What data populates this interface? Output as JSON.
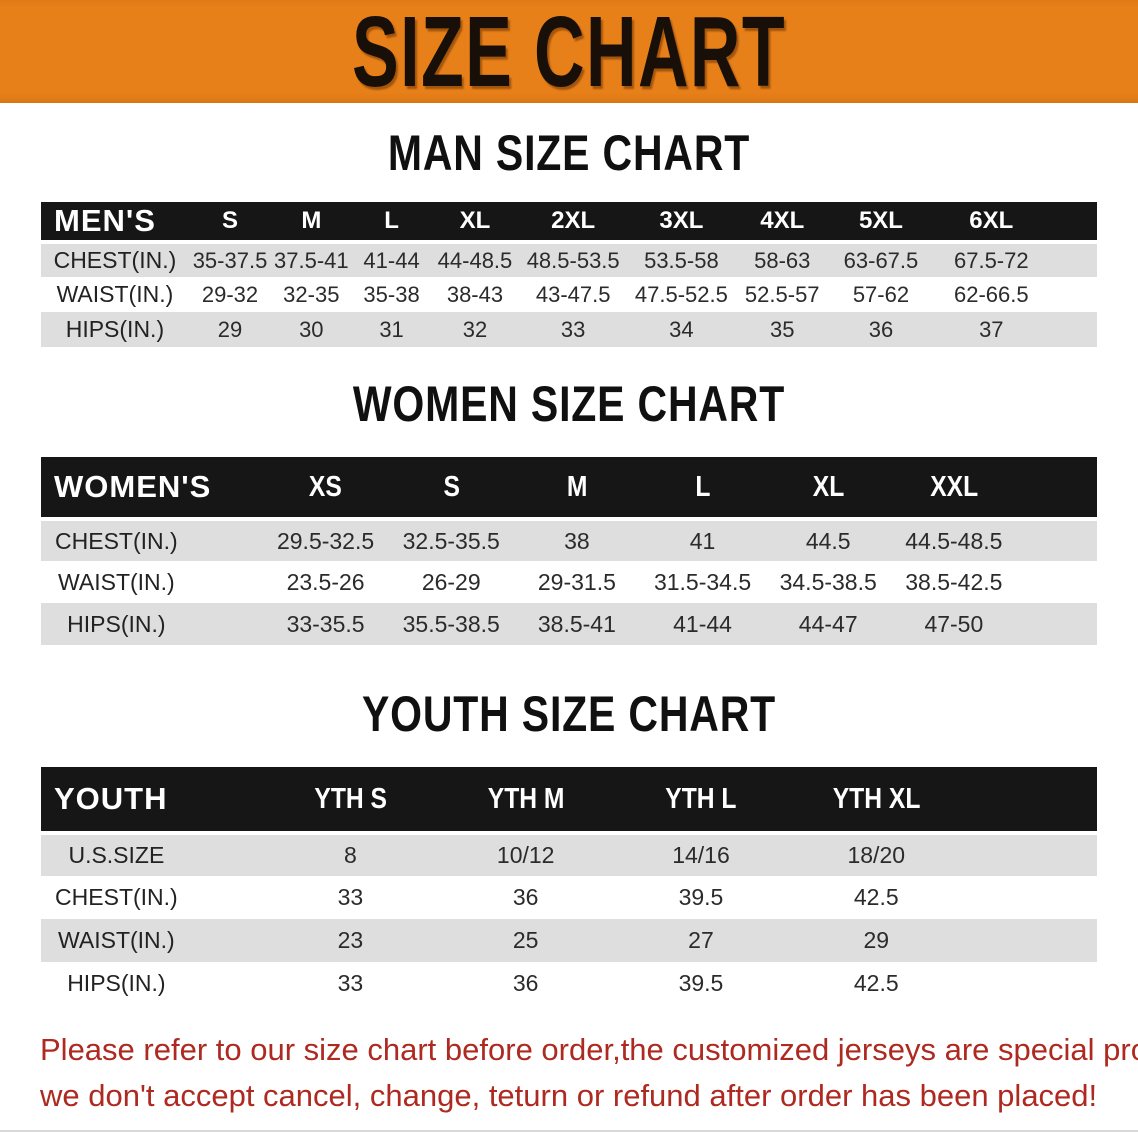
{
  "banner": {
    "title": "SIZE CHART",
    "bg_color": "#E8801A",
    "text_color": "#181008"
  },
  "sections": [
    {
      "id": "men",
      "heading": "MAN SIZE CHART",
      "table": {
        "corner_label": "MEN'S",
        "columns": [
          "S",
          "M",
          "L",
          "XL",
          "2XL",
          "3XL",
          "4XL",
          "5XL",
          "6XL"
        ],
        "rows": [
          {
            "label": "CHEST(IN.)",
            "values": [
              "35-37.5",
              "37.5-41",
              "41-44",
              "44-48.5",
              "48.5-53.5",
              "53.5-58",
              "58-63",
              "63-67.5",
              "67.5-72"
            ]
          },
          {
            "label": "WAIST(IN.)",
            "values": [
              "29-32",
              "32-35",
              "35-38",
              "38-43",
              "43-47.5",
              "47.5-52.5",
              "52.5-57",
              "57-62",
              "62-66.5"
            ]
          },
          {
            "label": "HIPS(IN.)",
            "values": [
              "29",
              "30",
              "31",
              "32",
              "33",
              "34",
              "35",
              "36",
              "37"
            ]
          }
        ]
      }
    },
    {
      "id": "women",
      "heading": "WOMEN SIZE CHART",
      "table": {
        "corner_label": "WOMEN'S",
        "columns": [
          "XS",
          "S",
          "M",
          "L",
          "XL",
          "XXL"
        ],
        "rows": [
          {
            "label": "CHEST(IN.)",
            "values": [
              "29.5-32.5",
              "32.5-35.5",
              "38",
              "41",
              "44.5",
              "44.5-48.5"
            ]
          },
          {
            "label": "WAIST(IN.)",
            "values": [
              "23.5-26",
              "26-29",
              "29-31.5",
              "31.5-34.5",
              "34.5-38.5",
              "38.5-42.5"
            ]
          },
          {
            "label": "HIPS(IN.)",
            "values": [
              "33-35.5",
              "35.5-38.5",
              "38.5-41",
              "41-44",
              "44-47",
              "47-50"
            ]
          }
        ]
      }
    },
    {
      "id": "youth",
      "heading": "YOUTH SIZE CHART",
      "table": {
        "corner_label": "YOUTH",
        "columns": [
          "YTH S",
          "YTH M",
          "YTH L",
          "YTH XL"
        ],
        "rows": [
          {
            "label": "U.S.SIZE",
            "values": [
              "8",
              "10/12",
              "14/16",
              "18/20"
            ]
          },
          {
            "label": "CHEST(IN.)",
            "values": [
              "33",
              "36",
              "39.5",
              "42.5"
            ]
          },
          {
            "label": "WAIST(IN.)",
            "values": [
              "23",
              "25",
              "27",
              "29"
            ]
          },
          {
            "label": "HIPS(IN.)",
            "values": [
              "33",
              "36",
              "39.5",
              "42.5"
            ]
          }
        ]
      }
    }
  ],
  "footer": {
    "line1": "Please refer to our size chart before order,the customized jerseys are special products,",
    "line2": "we don't accept cancel, change, teturn or refund after order has been placed!",
    "text_color": "#AE2A21"
  },
  "colors": {
    "table_header_bg": "#161616",
    "table_header_text": "#FFFFFF",
    "stripe_gray": "#DEDEDE",
    "data_text": "#2B2B2B"
  }
}
